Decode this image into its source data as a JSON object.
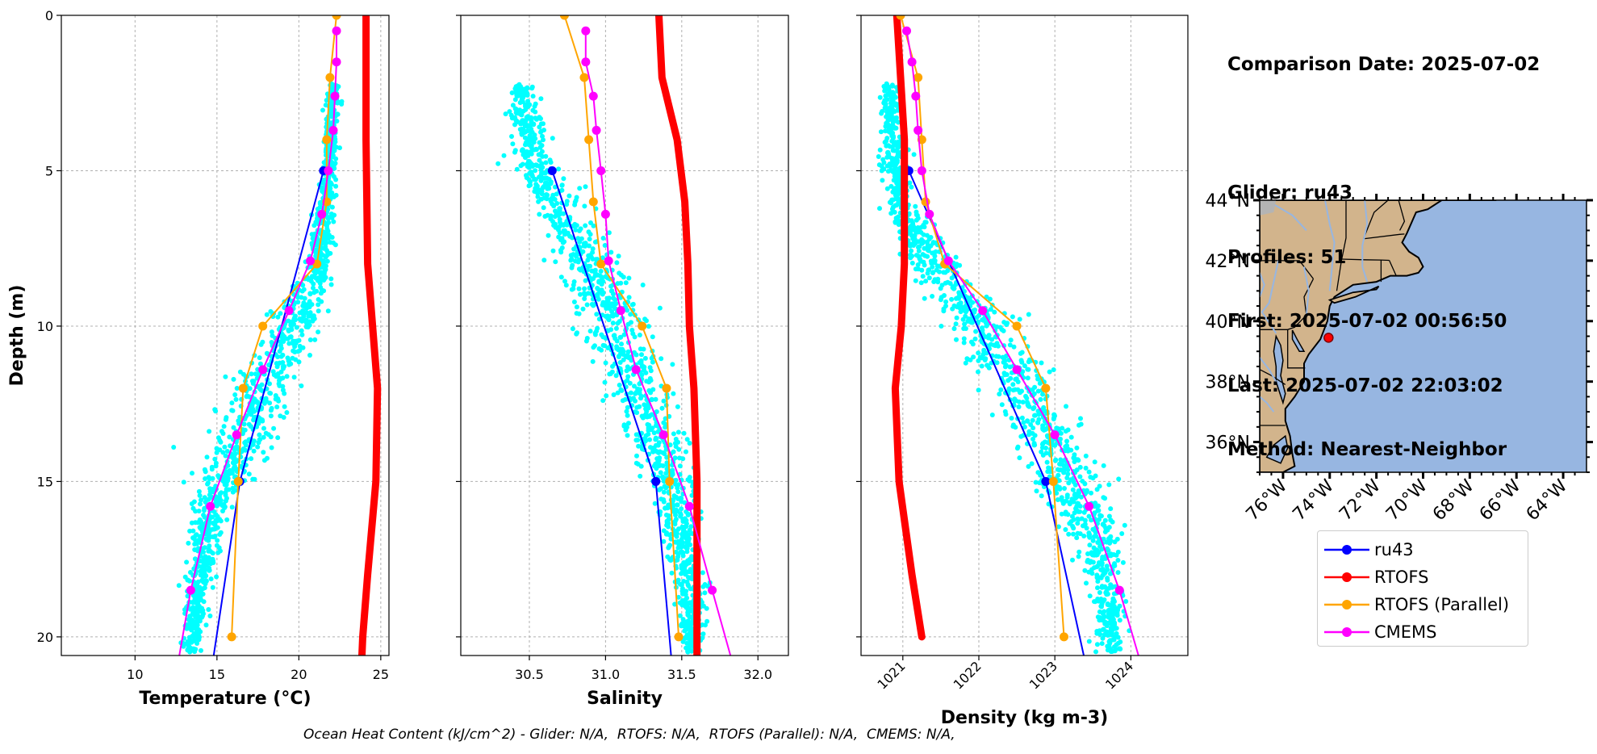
{
  "chart_data": [
    {
      "type": "line",
      "xlabel": "Temperature (°C)",
      "ylabel": "Depth (m)",
      "xlim": [
        5.5,
        25.5
      ],
      "ylim": [
        20.6,
        0
      ],
      "xticks": [
        "10",
        "15",
        "20",
        "25"
      ],
      "xtick_values": [
        10,
        15,
        20,
        25
      ],
      "yticks": [
        "0",
        "5",
        "10",
        "15",
        "20"
      ],
      "ytick_values": [
        0,
        5,
        10,
        15,
        20
      ],
      "grid": true,
      "scatter": {
        "name": "ru43 (raw)",
        "color": "#00ffff",
        "centerline_depth": [
          2.2,
          4,
          6,
          8,
          9.5,
          11,
          12.5,
          14,
          15.5,
          17,
          18.5,
          20.5
        ],
        "centerline_value": [
          22.1,
          21.9,
          21.7,
          21.2,
          20,
          18.6,
          17.4,
          16.2,
          15,
          14.2,
          13.8,
          13.4
        ],
        "spread": [
          0.35,
          0.4,
          0.5,
          0.7,
          1.3,
          1.6,
          1.7,
          1.6,
          1.3,
          0.9,
          0.6,
          0.5
        ]
      },
      "series": [
        {
          "name": "ru43",
          "color": "#0000ff",
          "marker": true,
          "linewidth": 2,
          "depth": [
            5,
            15,
            20.6
          ],
          "values": [
            21.5,
            16.4,
            14.8
          ]
        },
        {
          "name": "RTOFS",
          "color": "#ff0000",
          "marker": false,
          "linewidth": 9,
          "depth": [
            0,
            2,
            4,
            6,
            8,
            10,
            12,
            15,
            18,
            20,
            20.6
          ],
          "values": [
            24.1,
            24.1,
            24.1,
            24.15,
            24.2,
            24.5,
            24.8,
            24.7,
            24.2,
            23.9,
            23.85
          ]
        },
        {
          "name": "RTOFS (Parallel)",
          "color": "#ffa500",
          "marker": true,
          "linewidth": 2,
          "depth": [
            0,
            2,
            4,
            6,
            8,
            10,
            12,
            15,
            20
          ],
          "values": [
            22.3,
            21.9,
            21.7,
            21.7,
            21.1,
            17.8,
            16.6,
            16.3,
            15.9
          ]
        },
        {
          "name": "CMEMS",
          "color": "#ff00ff",
          "marker": true,
          "linewidth": 2,
          "depth": [
            0.5,
            1.5,
            2.6,
            3.7,
            5,
            6.4,
            7.9,
            9.5,
            11.4,
            13.5,
            15.8,
            18.5,
            20.6
          ],
          "values": [
            22.3,
            22.3,
            22.2,
            22.1,
            21.8,
            21.4,
            20.7,
            19.4,
            17.8,
            16.2,
            14.6,
            13.4,
            12.7
          ]
        }
      ]
    },
    {
      "type": "line",
      "xlabel": "Salinity",
      "xlim": [
        30.05,
        32.2
      ],
      "ylim": [
        20.6,
        0
      ],
      "xticks": [
        "30.5",
        "31.0",
        "31.5",
        "32.0"
      ],
      "xtick_values": [
        30.5,
        31.0,
        31.5,
        32.0
      ],
      "grid": true,
      "scatter": {
        "name": "ru43 (raw)",
        "color": "#00ffff",
        "centerline_depth": [
          2.2,
          3.5,
          5,
          6.5,
          8,
          9.5,
          11,
          12.5,
          14,
          15.5,
          17,
          18.5,
          20.5
        ],
        "centerline_value": [
          30.45,
          30.47,
          30.55,
          30.72,
          30.9,
          31.05,
          31.15,
          31.25,
          31.35,
          31.45,
          31.5,
          31.55,
          31.57
        ],
        "spread": [
          0.07,
          0.1,
          0.13,
          0.14,
          0.18,
          0.2,
          0.2,
          0.18,
          0.16,
          0.14,
          0.1,
          0.08,
          0.06
        ]
      },
      "series": [
        {
          "name": "ru43",
          "color": "#0000ff",
          "marker": true,
          "linewidth": 2,
          "depth": [
            5,
            15,
            20.6
          ],
          "values": [
            30.65,
            31.33,
            31.43
          ]
        },
        {
          "name": "RTOFS",
          "color": "#ff0000",
          "marker": false,
          "linewidth": 9,
          "depth": [
            0,
            2,
            4,
            6,
            8,
            10,
            12,
            15,
            18,
            20,
            20.6
          ],
          "values": [
            31.35,
            31.37,
            31.47,
            31.52,
            31.54,
            31.55,
            31.58,
            31.6,
            31.6,
            31.6,
            31.6
          ]
        },
        {
          "name": "RTOFS (Parallel)",
          "color": "#ffa500",
          "marker": true,
          "linewidth": 2,
          "depth": [
            0,
            2,
            4,
            6,
            8,
            10,
            12,
            15,
            20
          ],
          "values": [
            30.73,
            30.86,
            30.89,
            30.92,
            30.97,
            31.24,
            31.4,
            31.42,
            31.48
          ]
        },
        {
          "name": "CMEMS",
          "color": "#ff00ff",
          "marker": true,
          "linewidth": 2,
          "depth": [
            0.5,
            1.5,
            2.6,
            3.7,
            5,
            6.4,
            7.9,
            9.5,
            11.4,
            13.5,
            15.8,
            18.5,
            20.6
          ],
          "values": [
            30.87,
            30.87,
            30.92,
            30.94,
            30.97,
            31.0,
            31.02,
            31.1,
            31.2,
            31.38,
            31.55,
            31.7,
            31.82
          ]
        }
      ]
    },
    {
      "type": "line",
      "xlabel": "Density (kg m-3)",
      "xlim": [
        1020.45,
        1024.75
      ],
      "ylim": [
        20.6,
        0
      ],
      "xticks": [
        "1021",
        "1022",
        "1023",
        "1024"
      ],
      "xtick_values": [
        1021,
        1022,
        1023,
        1024
      ],
      "xtick_rotation": 45,
      "grid": true,
      "scatter": {
        "name": "ru43 (raw)",
        "color": "#00ffff",
        "centerline_depth": [
          2.2,
          4,
          6,
          8,
          9.5,
          11,
          12.5,
          14,
          15.5,
          17,
          18.5,
          20.5
        ],
        "centerline_value": [
          1020.82,
          1020.87,
          1020.95,
          1021.4,
          1021.9,
          1022.3,
          1022.7,
          1023.0,
          1023.3,
          1023.6,
          1023.72,
          1023.72
        ],
        "spread": [
          0.1,
          0.12,
          0.16,
          0.3,
          0.4,
          0.45,
          0.45,
          0.42,
          0.38,
          0.3,
          0.2,
          0.15
        ]
      },
      "series": [
        {
          "name": "ru43",
          "color": "#0000ff",
          "marker": true,
          "linewidth": 2,
          "depth": [
            5,
            15,
            20.6
          ],
          "values": [
            1021.08,
            1022.88,
            1023.38
          ]
        },
        {
          "name": "RTOFS",
          "color": "#ff0000",
          "marker": false,
          "linewidth": 9,
          "depth": [
            0,
            2,
            4,
            6,
            8,
            10,
            12,
            15,
            18,
            20
          ],
          "values": [
            1020.92,
            1020.97,
            1021.02,
            1021.02,
            1021.02,
            1020.98,
            1020.9,
            1020.95,
            1021.12,
            1021.25
          ]
        },
        {
          "name": "RTOFS (Parallel)",
          "color": "#ffa500",
          "marker": true,
          "linewidth": 2,
          "depth": [
            0,
            2,
            4,
            6,
            8,
            10,
            12,
            15,
            20
          ],
          "values": [
            1020.97,
            1021.2,
            1021.25,
            1021.3,
            1021.55,
            1022.5,
            1022.88,
            1022.98,
            1023.12
          ]
        },
        {
          "name": "CMEMS",
          "color": "#ff00ff",
          "marker": true,
          "linewidth": 2,
          "depth": [
            0.5,
            1.5,
            2.6,
            3.7,
            5,
            6.4,
            7.9,
            9.5,
            11.4,
            13.5,
            15.8,
            18.5,
            20.6
          ],
          "values": [
            1021.05,
            1021.12,
            1021.17,
            1021.2,
            1021.25,
            1021.35,
            1021.6,
            1022.05,
            1022.5,
            1023.0,
            1023.45,
            1023.85,
            1024.1
          ]
        }
      ]
    }
  ],
  "info": {
    "comparison_date": "Comparison Date: 2025-07-02",
    "glider": "Glider: ru43",
    "profiles": "Profiles: 51",
    "first": "First: 2025-07-02 00:56:50",
    "last": "Last: 2025-07-02 22:03:02",
    "method": "Method: Nearest-Neighbor"
  },
  "map": {
    "lon_range": [
      -77,
      -63
    ],
    "lat_range": [
      35,
      44
    ],
    "lat_ticks": [
      "36°N",
      "38°N",
      "40°N",
      "42°N",
      "44°N"
    ],
    "lat_tick_values": [
      36,
      38,
      40,
      42,
      44
    ],
    "lon_ticks": [
      "76°W",
      "74°W",
      "72°W",
      "70°W",
      "68°W",
      "66°W",
      "64°W"
    ],
    "lon_tick_values": [
      -76,
      -74,
      -72,
      -70,
      -68,
      -66,
      -64
    ],
    "ocean_color": "#97b6e1",
    "land_color": "#d2b48c",
    "glider_position": {
      "lon": -74.05,
      "lat": 39.45,
      "color": "#ff0000"
    }
  },
  "legend": [
    {
      "label": "ru43",
      "color": "#0000ff"
    },
    {
      "label": "RTOFS",
      "color": "#ff0000"
    },
    {
      "label": "RTOFS (Parallel)",
      "color": "#ffa500"
    },
    {
      "label": "CMEMS",
      "color": "#ff00ff"
    }
  ],
  "footer": "Ocean Heat Content (kJ/cm^2) - Glider: N/A,  RTOFS: N/A,  RTOFS (Parallel): N/A,  CMEMS: N/A,"
}
